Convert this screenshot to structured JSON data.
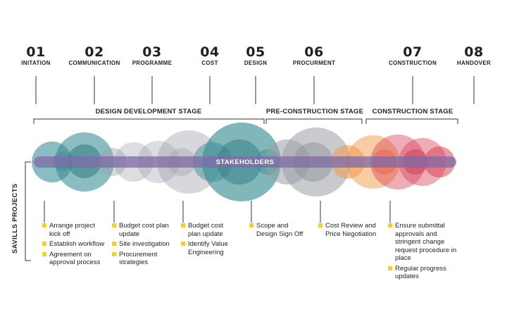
{
  "stages": [
    {
      "num": "01",
      "label": "INITATION"
    },
    {
      "num": "02",
      "label": "COMMUNICATION"
    },
    {
      "num": "03",
      "label": "PROGRAMME"
    },
    {
      "num": "04",
      "label": "COST"
    },
    {
      "num": "05",
      "label": "DESIGN"
    },
    {
      "num": "06",
      "label": "PROCURMENT"
    },
    {
      "num": "07",
      "label": "CONSTRUCTION"
    },
    {
      "num": "08",
      "label": "HANDOVER"
    }
  ],
  "phases": {
    "design_development": "DESIGN DEVELOPMENT STAGE",
    "pre_construction": "PRE-CONSTRUCTION STAGE",
    "construction": "CONSTRUCTION STAGE"
  },
  "center_label": "STAKEHOLDERS",
  "side_label": "SAVILLS PROJECTS",
  "task_groups": [
    [
      "Arrange project kick off",
      "Establish workflow",
      "Agreement on approval process"
    ],
    [
      "Budget cost plan update",
      "Site investigation",
      "Procurement strategies"
    ],
    [
      "Budget cost plan update",
      "Identify Value Engineering"
    ],
    [
      "Scope and Design Sign Off"
    ],
    [
      "Cost Review and Price Negotiation"
    ],
    [
      "Ensure submittal approvals and stringent change request procedure in place",
      "Regular progress updates"
    ]
  ],
  "colors": {
    "teal": "#3d8f97",
    "grey": "#9a9ea6",
    "purple": "#7f6aa8",
    "orange": "#f29a4a",
    "red": "#d9485a",
    "bullet": "#f2d21c"
  }
}
